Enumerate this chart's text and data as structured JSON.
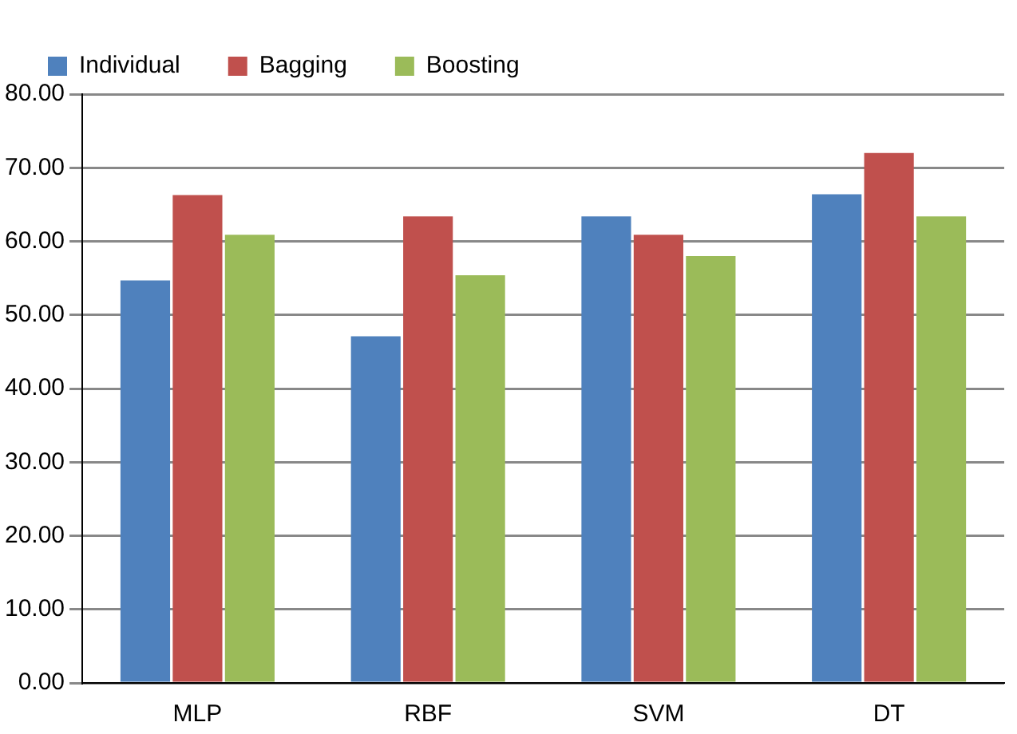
{
  "chart_data": {
    "type": "bar",
    "categories": [
      "MLP",
      "RBF",
      "SVM",
      "DT"
    ],
    "series": [
      {
        "name": "Individual",
        "color": "#4f81bd",
        "values": [
          54.7,
          47.1,
          63.4,
          66.4
        ]
      },
      {
        "name": "Bagging",
        "color": "#c0504d",
        "values": [
          66.3,
          63.4,
          60.9,
          72.0
        ]
      },
      {
        "name": "Boosting",
        "color": "#9bbb59",
        "values": [
          60.9,
          55.4,
          58.0,
          63.4
        ]
      }
    ],
    "ylim": [
      0,
      80
    ],
    "yticks": [
      {
        "value": 0,
        "label": "0.00"
      },
      {
        "value": 10,
        "label": "10.00"
      },
      {
        "value": 20,
        "label": "20.00"
      },
      {
        "value": 30,
        "label": "30.00"
      },
      {
        "value": 40,
        "label": "40.00"
      },
      {
        "value": 50,
        "label": "50.00"
      },
      {
        "value": 60,
        "label": "60.00"
      },
      {
        "value": 70,
        "label": "70.00"
      },
      {
        "value": 80,
        "label": "80.00"
      }
    ],
    "grid": "y",
    "legend": "top left"
  }
}
